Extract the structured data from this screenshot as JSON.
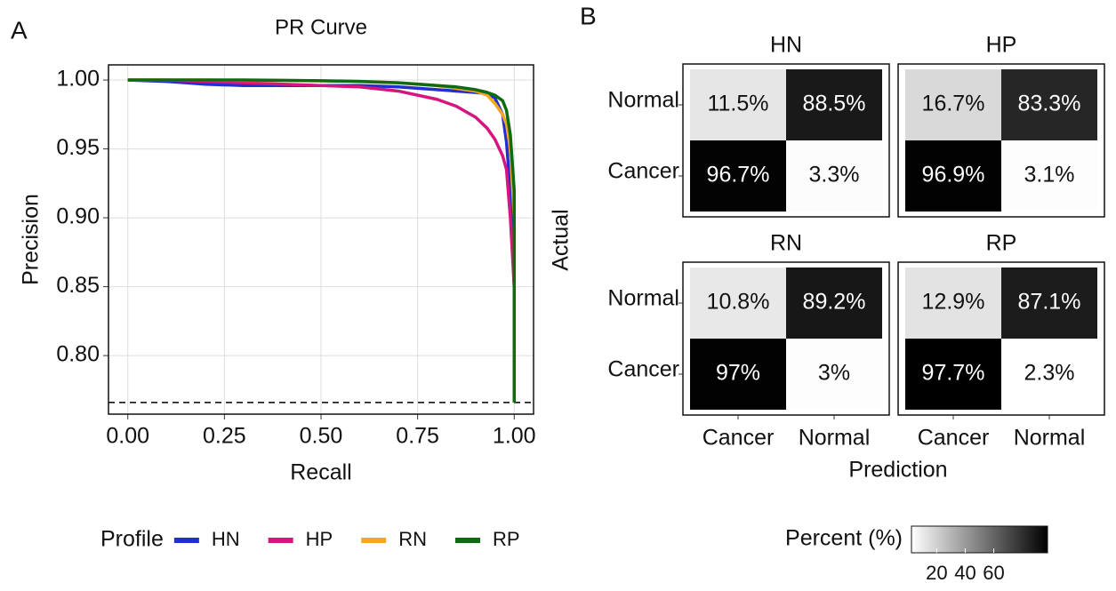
{
  "chart_data": [
    {
      "type": "line",
      "panel": "A",
      "title": "PR Curve",
      "xlabel": "Recall",
      "ylabel": "Precision",
      "x": [
        0,
        0.05,
        0.1,
        0.15,
        0.2,
        0.3,
        0.4,
        0.5,
        0.6,
        0.7,
        0.8,
        0.85,
        0.9,
        0.93,
        0.95,
        0.97,
        0.98,
        0.99,
        1.0,
        1.0
      ],
      "series": [
        {
          "name": "HN",
          "color": "#1f2fd0",
          "values": [
            1.0,
            0.9995,
            0.999,
            0.998,
            0.997,
            0.996,
            0.996,
            0.996,
            0.996,
            0.995,
            0.993,
            0.992,
            0.991,
            0.99,
            0.987,
            0.975,
            0.955,
            0.92,
            0.85,
            0.766
          ]
        },
        {
          "name": "HP",
          "color": "#d6157f",
          "values": [
            1.0,
            1.0,
            1.0,
            0.9995,
            0.999,
            0.998,
            0.997,
            0.996,
            0.995,
            0.992,
            0.986,
            0.981,
            0.973,
            0.965,
            0.957,
            0.945,
            0.935,
            0.9,
            0.85,
            0.766
          ]
        },
        {
          "name": "RN",
          "color": "#f5a623",
          "values": [
            1.0,
            1.0,
            1.0,
            1.0,
            1.0,
            0.9998,
            0.9996,
            0.9995,
            0.999,
            0.998,
            0.996,
            0.994,
            0.992,
            0.989,
            0.983,
            0.975,
            0.968,
            0.95,
            0.9,
            0.766
          ]
        },
        {
          "name": "RP",
          "color": "#0d6b12",
          "values": [
            1.0,
            1.0,
            1.0,
            1.0,
            1.0,
            1.0,
            0.9998,
            0.9995,
            0.999,
            0.998,
            0.996,
            0.995,
            0.993,
            0.991,
            0.989,
            0.985,
            0.978,
            0.96,
            0.92,
            0.766
          ]
        }
      ],
      "baseline": 0.766,
      "xlim": [
        -0.05,
        1.05
      ],
      "ylim": [
        0.7575,
        1.011
      ],
      "xticks": [
        {
          "value": 0,
          "label": "0.00"
        },
        {
          "value": 0.25,
          "label": "0.25"
        },
        {
          "value": 0.5,
          "label": "0.50"
        },
        {
          "value": 0.75,
          "label": "0.75"
        },
        {
          "value": 1,
          "label": "1.00"
        }
      ],
      "yticks": [
        {
          "value": 0.8,
          "label": "0.80"
        },
        {
          "value": 0.85,
          "label": "0.85"
        },
        {
          "value": 0.9,
          "label": "0.90"
        },
        {
          "value": 0.95,
          "label": "0.95"
        },
        {
          "value": 1,
          "label": "1.00"
        }
      ],
      "grid": true,
      "legend_title": "Profile",
      "legend": "bottom"
    },
    {
      "type": "heatmap",
      "panel": "B",
      "xlabel": "Prediction",
      "ylabel": "Actual",
      "rows": [
        "Normal",
        "Cancer"
      ],
      "columns": [
        "Cancer",
        "Normal"
      ],
      "facets": [
        {
          "title": "HN",
          "values": [
            [
              11.5,
              88.5
            ],
            [
              96.7,
              3.3
            ]
          ],
          "value_labels": [
            [
              "11.5%",
              "88.5%"
            ],
            [
              "96.7%",
              "3.3%"
            ]
          ]
        },
        {
          "title": "HP",
          "values": [
            [
              16.7,
              83.3
            ],
            [
              96.9,
              3.1
            ]
          ],
          "value_labels": [
            [
              "16.7%",
              "83.3%"
            ],
            [
              "96.9%",
              "3.1%"
            ]
          ]
        },
        {
          "title": "RN",
          "values": [
            [
              10.8,
              89.2
            ],
            [
              97,
              3
            ]
          ],
          "value_labels": [
            [
              "10.8%",
              "89.2%"
            ],
            [
              "97%",
              "3%"
            ]
          ]
        },
        {
          "title": "RP",
          "values": [
            [
              12.9,
              87.1
            ],
            [
              97.7,
              2.3
            ]
          ],
          "value_labels": [
            [
              "12.9%",
              "87.1%"
            ],
            [
              "97.7%",
              "2.3%"
            ]
          ]
        }
      ],
      "colorbar": {
        "title": "Percent (%)",
        "lim": [
          2.3,
          97.7
        ],
        "ticks": [
          20,
          40,
          60
        ],
        "low_color": "#ffffff",
        "high_color": "#000000"
      }
    }
  ]
}
